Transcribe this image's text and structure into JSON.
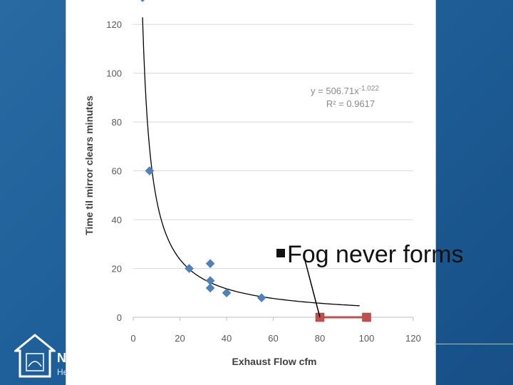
{
  "callout": {
    "text": "Fog never forms"
  },
  "logo": {
    "text_line1": "N",
    "text_line2": "He"
  },
  "chart_data": {
    "type": "scatter",
    "xlabel": "Exhaust Flow cfm",
    "ylabel": "Time til mirror clears minutes",
    "xlim": [
      0,
      120
    ],
    "ylim": [
      0,
      130
    ],
    "x_ticks": [
      0,
      20,
      40,
      60,
      80,
      100,
      120
    ],
    "y_ticks": [
      0,
      20,
      40,
      60,
      80,
      100,
      120
    ],
    "grid": "horizontal",
    "series": [
      {
        "marker": "diamond",
        "color": "#4f81bd",
        "points": [
          [
            4,
            131
          ],
          [
            7,
            60
          ],
          [
            24,
            20
          ],
          [
            33,
            22
          ],
          [
            33,
            15
          ],
          [
            33,
            12
          ],
          [
            40,
            10
          ],
          [
            55,
            8
          ]
        ]
      },
      {
        "marker": "square",
        "color": "#c0504d",
        "line": true,
        "points": [
          [
            80,
            0
          ],
          [
            100,
            0
          ]
        ]
      }
    ],
    "trendline": {
      "type": "power",
      "a": 506.71,
      "b": -1.022,
      "x_range": [
        4,
        97
      ],
      "equation_prefix": "y = 506.71x",
      "equation_exponent": "-1.022",
      "r2_label": "R² = 0.9617"
    }
  }
}
